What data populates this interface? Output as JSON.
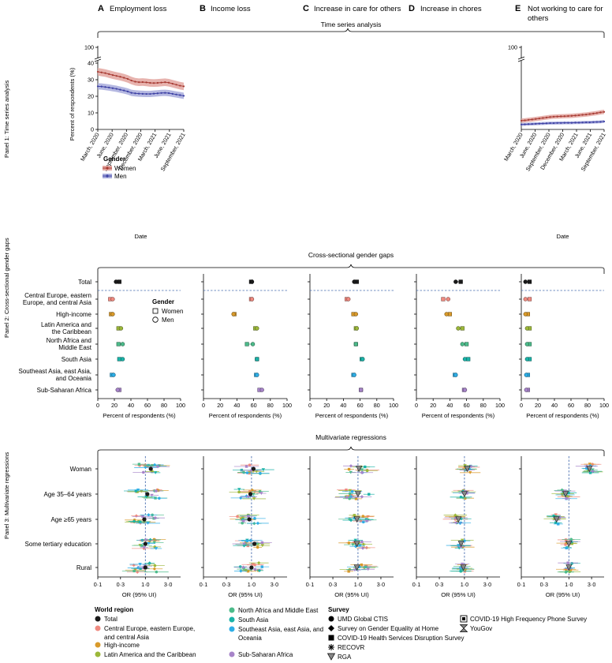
{
  "columns": [
    {
      "letter": "A",
      "title": "Employment loss"
    },
    {
      "letter": "B",
      "title": "Income loss"
    },
    {
      "letter": "C",
      "title": "Increase in care for others"
    },
    {
      "letter": "D",
      "title": "Increase in chores"
    },
    {
      "letter": "E",
      "title": "Not working to care for others",
      "title_lines": [
        "Not working to care for",
        "others"
      ]
    }
  ],
  "panels": {
    "p1": "Panel 1: Time series analysis",
    "p2": "Panel 2: Cross-sectional gender gaps",
    "p3": "Panel 3: Multivariate regressions"
  },
  "section_titles": {
    "ts": "Time series analysis",
    "cs": "Cross-sectional gender gaps",
    "mv": "Multivariate regressions"
  },
  "chart_data": [
    {
      "type": "line",
      "id": "ts-employment-loss",
      "title": "Employment loss",
      "xlabel": "Date",
      "ylabel": "Percent of respondents (%)",
      "x_ticks": [
        "March, 2020",
        "June, 2020",
        "September, 2020",
        "December, 2020",
        "March, 2021",
        "June, 2021",
        "September, 2021"
      ],
      "y_ticks": [
        0,
        10,
        20,
        30,
        40
      ],
      "y_break_label": "100",
      "ylim": [
        0,
        40
      ],
      "legend_title": "Gender",
      "series": [
        {
          "name": "Women",
          "color": "#a63a32",
          "band": "#e3a6a0",
          "values": [
            34.8,
            34.4,
            34.0,
            33.4,
            32.8,
            32.3,
            31.8,
            31.2,
            30.5,
            29.5,
            28.8,
            28.5,
            28.6,
            28.4,
            28.1,
            28.0,
            28.1,
            28.3,
            28.5,
            28.2,
            27.6,
            27.0,
            26.4,
            26.0
          ],
          "band_halfwidth": 2.3
        },
        {
          "name": "Men",
          "color": "#3b3fa3",
          "band": "#a8acdc",
          "values": [
            26.0,
            25.9,
            25.6,
            25.3,
            24.9,
            24.5,
            24.0,
            23.5,
            22.9,
            22.1,
            21.8,
            21.6,
            21.5,
            21.4,
            21.4,
            21.6,
            21.8,
            22.0,
            22.1,
            21.9,
            21.5,
            21.1,
            20.7,
            20.3
          ],
          "band_halfwidth": 1.9
        }
      ]
    },
    {
      "type": "line",
      "id": "ts-not-working-to-care",
      "title": "Not working to care for others",
      "xlabel": "Date",
      "x_ticks": [
        "March, 2020",
        "June, 2020",
        "September, 2020",
        "December, 2020",
        "March, 2021",
        "June, 2021",
        "September, 2021"
      ],
      "y_break_label": "100",
      "ylim": [
        0,
        40
      ],
      "series": [
        {
          "name": "Women",
          "color": "#a63a32",
          "band": "#e3a6a0",
          "values": [
            5.3,
            5.5,
            5.8,
            6.0,
            6.3,
            6.6,
            6.9,
            7.2,
            7.5,
            7.7,
            7.8,
            7.9,
            8.0,
            8.1,
            8.2,
            8.4,
            8.6,
            8.8,
            9.0,
            9.3,
            9.6,
            9.9,
            10.3,
            10.6
          ],
          "band_halfwidth": 1.3
        },
        {
          "name": "Men",
          "color": "#3b3fa3",
          "band": "#a8acdc",
          "values": [
            3.0,
            3.1,
            3.2,
            3.3,
            3.4,
            3.5,
            3.6,
            3.7,
            3.8,
            3.8,
            3.9,
            3.9,
            4.0,
            4.0,
            4.0,
            4.1,
            4.1,
            4.2,
            4.3,
            4.3,
            4.4,
            4.5,
            4.6,
            4.8
          ],
          "band_halfwidth": 0.9
        }
      ]
    },
    {
      "type": "scatter",
      "id": "cross-sectional-gaps",
      "xlabel": "Percent of respondents (%)",
      "x_ticks": [
        0,
        20,
        40,
        60,
        80,
        100
      ],
      "legend_title": "Gender",
      "legend": [
        "Women",
        "Men"
      ],
      "rows": [
        "Total",
        "Central Europe, eastern Europe, and central Asia",
        "High-income",
        "Latin America and the Caribbean",
        "North Africa and Middle East",
        "South Asia",
        "Southeast Asia, east Asia, and Oceania",
        "Sub-Saharan Africa"
      ],
      "row_labels": [
        [
          "Total"
        ],
        [
          "Central Europe, eastern",
          "Europe, and central Asia"
        ],
        [
          "High-income"
        ],
        [
          "Latin America and",
          "the Caribbean"
        ],
        [
          "North Africa and",
          "Middle East"
        ],
        [
          "South Asia"
        ],
        [
          "Southeast Asia, east Asia,",
          "and Oceania"
        ],
        [
          "Sub-Saharan Africa"
        ]
      ],
      "columns": [
        {
          "name": "Employment loss",
          "women": [
            26,
            15,
            16,
            25,
            25,
            26,
            17,
            26
          ],
          "men": [
            22,
            18,
            18,
            28,
            30,
            30,
            19,
            24
          ]
        },
        {
          "name": "Income loss",
          "women": [
            57,
            57,
            37,
            62,
            52,
            64,
            63,
            67
          ],
          "men": [
            58,
            58,
            36,
            64,
            59,
            64,
            64,
            70
          ]
        },
        {
          "name": "Increase in care for others",
          "women": [
            56,
            44,
            52,
            55,
            55,
            62,
            52,
            61
          ],
          "men": [
            53,
            46,
            55,
            56,
            55,
            63,
            53,
            61
          ]
        },
        {
          "name": "Increase in chores",
          "women": [
            53,
            32,
            40,
            55,
            60,
            62,
            46,
            57
          ],
          "men": [
            47,
            38,
            36,
            50,
            55,
            58,
            47,
            58
          ]
        },
        {
          "name": "Not working to care for others",
          "women": [
            10,
            10,
            8,
            10,
            10,
            10,
            8,
            8
          ],
          "men": [
            5,
            5,
            5,
            7,
            7,
            7,
            6,
            6
          ]
        }
      ]
    },
    {
      "type": "scatter",
      "id": "multivariate-regressions",
      "xlabel": "OR (95% UI)",
      "x_ticks": [
        "0·1",
        "0·3",
        "1·0",
        "3·0"
      ],
      "x_tick_values": [
        0.1,
        0.3,
        1.0,
        3.0
      ],
      "scale": "log",
      "reference_line": 1.0,
      "rows": [
        "Woman",
        "Age 35–64 years",
        "Age ≥65 years",
        "Some tertiary education",
        "Rural"
      ],
      "columns": [
        {
          "name": "Employment loss",
          "total": [
            1.3,
            1.1,
            0.95,
            1.0,
            1.0
          ]
        },
        {
          "name": "Income loss",
          "total": [
            1.1,
            0.95,
            0.9,
            1.15,
            1.0
          ]
        },
        {
          "name": "Increase in care for others",
          "total": [
            1.05,
            1.0,
            0.95,
            0.95,
            0.95
          ]
        },
        {
          "name": "Increase in chores",
          "total": [
            1.15,
            1.0,
            0.75,
            0.85,
            0.95
          ]
        },
        {
          "name": "Not working to care for others",
          "total": [
            2.7,
            0.85,
            0.55,
            1.0,
            1.0
          ]
        }
      ]
    }
  ],
  "legend": {
    "world_region_title": "World region",
    "world_regions": [
      {
        "label": "Total",
        "color": "#1a1a1a"
      },
      {
        "label": "Central Europe, eastern Europe, and central Asia",
        "lines": [
          "Central Europe, eastern Europe,",
          "and central Asia"
        ],
        "color": "#ef8a80"
      },
      {
        "label": "High-income",
        "color": "#d99a2b"
      },
      {
        "label": "Latin America and the Caribbean",
        "color": "#9cb83a"
      },
      {
        "label": "North Africa and Middle East",
        "color": "#4cbb8a"
      },
      {
        "label": "South Asia",
        "color": "#1bb3a8"
      },
      {
        "label": "Southeast Asia, east Asia, and Oceania",
        "lines": [
          "Southeast Asia, east Asia, and",
          "Oceania"
        ],
        "color": "#2eaee6"
      },
      {
        "label": "Sub-Saharan Africa",
        "color": "#a784c9"
      }
    ],
    "survey_title": "Survey",
    "surveys": [
      {
        "label": "UMD Global CTIS",
        "marker": "circle"
      },
      {
        "label": "Survey on Gender Equality at Home",
        "marker": "diamond"
      },
      {
        "label": "COVID-19 Health Services Disruption Survey",
        "marker": "square"
      },
      {
        "label": "RECOVR",
        "marker": "asterisk"
      },
      {
        "label": "RGA",
        "marker": "triangle-down"
      },
      {
        "label": "COVID-19 High Frequency Phone Survey",
        "marker": "boxed-square"
      },
      {
        "label": "YouGov",
        "marker": "hourglass"
      }
    ]
  }
}
